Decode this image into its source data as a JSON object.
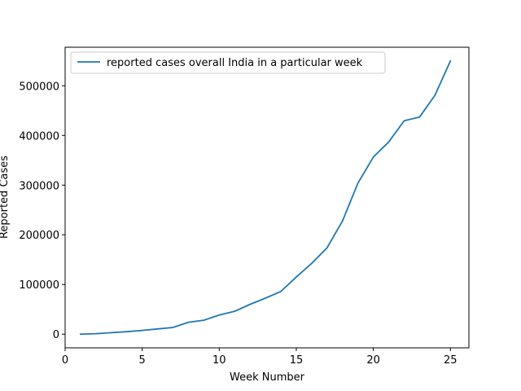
{
  "chart_data": {
    "type": "line",
    "title": "",
    "xlabel": "Week Number",
    "ylabel": "Reported Cases",
    "xlim": [
      0,
      26.2
    ],
    "ylim": [
      -27500,
      577500
    ],
    "xticks": [
      0,
      5,
      10,
      15,
      20,
      25
    ],
    "yticks": [
      0,
      100000,
      200000,
      300000,
      400000,
      500000
    ],
    "grid": false,
    "legend_position": "top-left",
    "series": [
      {
        "name": "reported cases overall India in a particular week",
        "color": "#1f77b4",
        "x": [
          1,
          2,
          3,
          4,
          5,
          6,
          7,
          8,
          9,
          10,
          11,
          12,
          13,
          14,
          15,
          16,
          17,
          18,
          19,
          20,
          21,
          22,
          23,
          24,
          25
        ],
        "y": [
          0,
          1000,
          3000,
          5000,
          7500,
          10500,
          13500,
          24000,
          28000,
          38500,
          46000,
          60000,
          72500,
          86000,
          115000,
          142500,
          174000,
          228000,
          304000,
          356500,
          387000,
          429500,
          437000,
          481000,
          550000
        ]
      }
    ]
  }
}
